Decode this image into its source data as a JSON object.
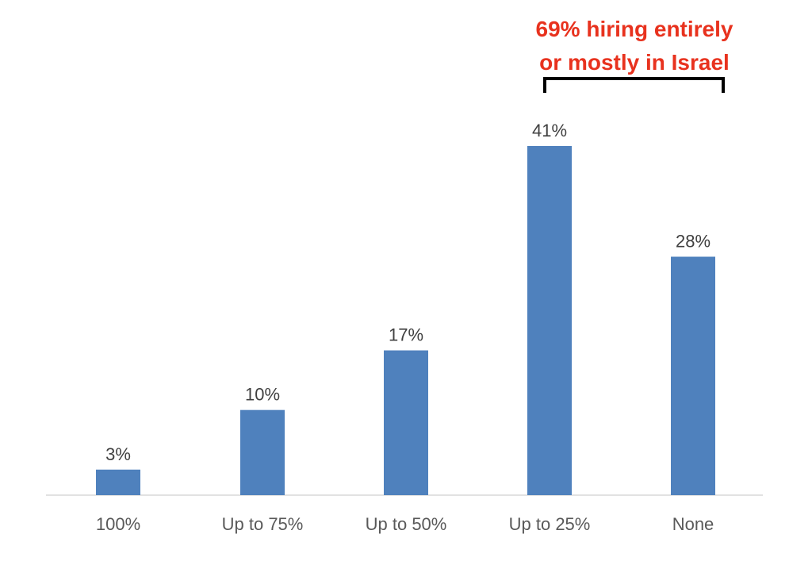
{
  "chart_data": {
    "type": "bar",
    "categories": [
      "100%",
      "Up to 75%",
      "Up to 50%",
      "Up to 25%",
      "None"
    ],
    "values": [
      3,
      10,
      17,
      41,
      28
    ],
    "value_labels": [
      "3%",
      "10%",
      "17%",
      "41%",
      "28%"
    ],
    "unit": "%",
    "title": "",
    "xlabel": "",
    "ylabel": "",
    "ylim": [
      0,
      41
    ],
    "grid": false,
    "bar_color": "#4f81bd",
    "annotation": {
      "lines": [
        "69% hiring entirely",
        "or mostly in Israel"
      ],
      "color": "#e8321e",
      "bracket_from_category": "Up to 25%",
      "bracket_to_category": "None"
    }
  }
}
